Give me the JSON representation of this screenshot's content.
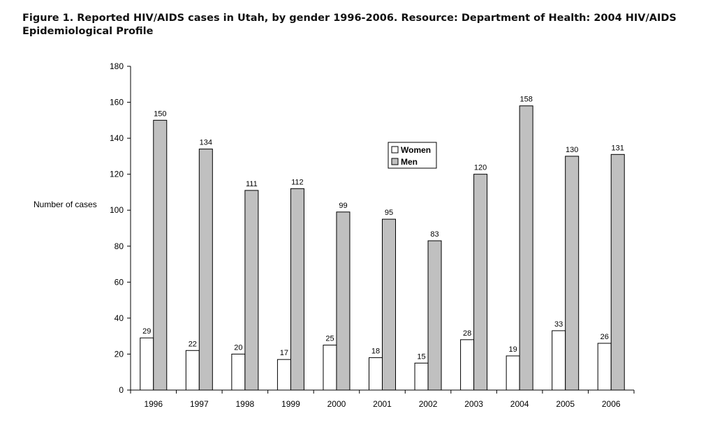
{
  "figure": {
    "title_line1": "Figure 1. Reported HIV/AIDS cases in Utah, by gender 1996-2006. Resource: Department of Health:  2004 HIV/AIDS",
    "title_line2": "Epidemiological Profile"
  },
  "chart_data": {
    "type": "bar",
    "categories": [
      "1996",
      "1997",
      "1998",
      "1999",
      "2000",
      "2001",
      "2002",
      "2003",
      "2004",
      "2005",
      "2006"
    ],
    "series": [
      {
        "name": "Women",
        "values": [
          29,
          22,
          20,
          17,
          25,
          18,
          15,
          28,
          19,
          33,
          26
        ],
        "color": "#ffffff"
      },
      {
        "name": "Men",
        "values": [
          150,
          134,
          111,
          112,
          99,
          95,
          83,
          120,
          158,
          130,
          131
        ],
        "color": "#c0c0c0"
      }
    ],
    "ylabel": "Number of cases",
    "xlabel": "",
    "ylim": [
      0,
      180
    ],
    "yticks": [
      0,
      20,
      40,
      60,
      80,
      100,
      120,
      140,
      160,
      180
    ],
    "grid": false,
    "legend_position": "top-center",
    "data_labels": true
  }
}
